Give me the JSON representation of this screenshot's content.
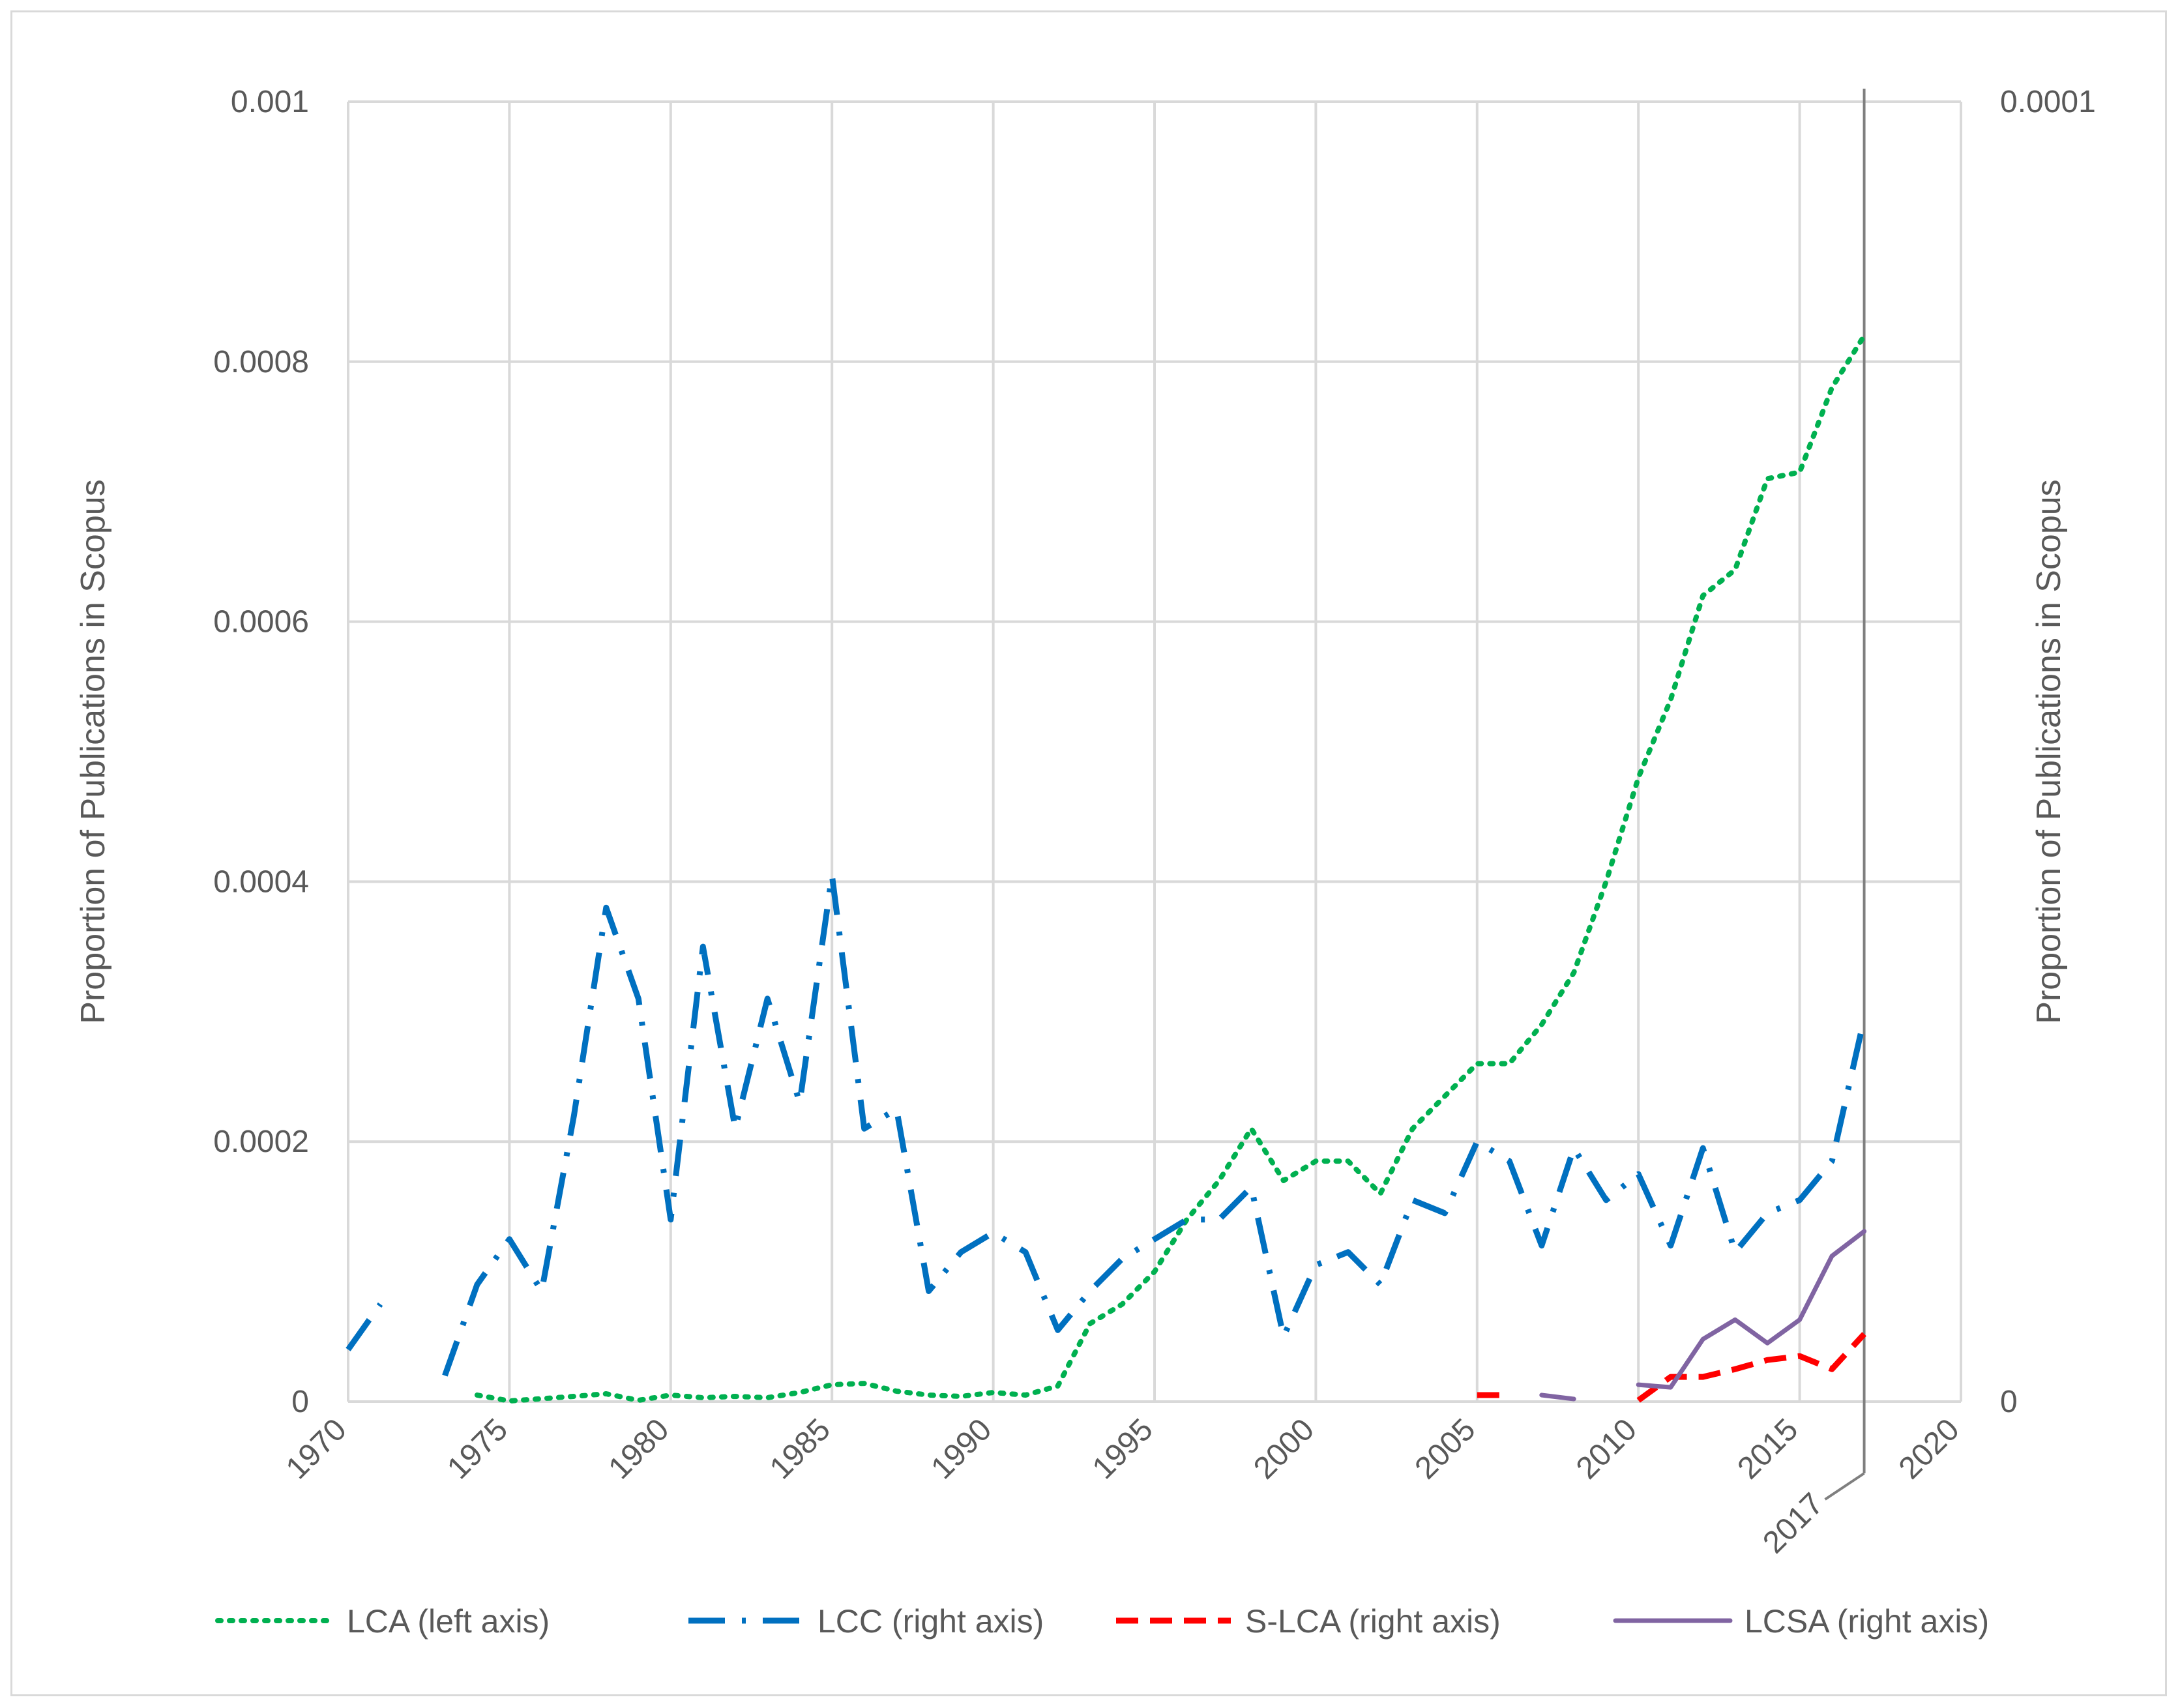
{
  "chart_data": {
    "type": "line",
    "title": "",
    "xlabel": "",
    "ylabel_left": "Proportion of Publications in Scopus",
    "ylabel_right": "Proportion of Publications in Scopus",
    "xlim": [
      1970,
      2020
    ],
    "ylim_left": [
      0,
      0.001
    ],
    "ylim_right": [
      0,
      0.0001
    ],
    "x_ticks": [
      "1970",
      "1975",
      "1980",
      "1985",
      "1990",
      "1995",
      "2000",
      "2005",
      "2010",
      "2015",
      "2020"
    ],
    "left_ticks": [
      "0",
      "0.0002",
      "0.0004",
      "0.0006",
      "0.0008",
      "0.001"
    ],
    "right_ticks": [
      "0",
      "0.0001"
    ],
    "marker_line": {
      "x": 2017,
      "label": "2017"
    },
    "grid": true,
    "legend_position": "bottom",
    "series": [
      {
        "name": "LCA (left axis)",
        "axis": "left",
        "color": "#00b050",
        "dash": "dotted",
        "points": [
          [
            1974,
            5e-06
          ],
          [
            1975,
            5e-07
          ],
          [
            1977,
            4e-06
          ],
          [
            1978,
            6e-06
          ],
          [
            1979,
            1e-06
          ],
          [
            1980,
            5e-06
          ],
          [
            1981,
            3e-06
          ],
          [
            1982,
            4e-06
          ],
          [
            1983,
            3e-06
          ],
          [
            1984,
            7e-06
          ],
          [
            1985,
            1.3e-05
          ],
          [
            1986,
            1.4e-05
          ],
          [
            1987,
            8e-06
          ],
          [
            1988,
            5e-06
          ],
          [
            1989,
            4e-06
          ],
          [
            1990,
            7e-06
          ],
          [
            1991,
            5e-06
          ],
          [
            1992,
            1.2e-05
          ],
          [
            1993,
            6e-05
          ],
          [
            1994,
            7.5e-05
          ],
          [
            1995,
            0.0001
          ],
          [
            1996,
            0.00014
          ],
          [
            1997,
            0.00017
          ],
          [
            1998,
            0.00021
          ],
          [
            1999,
            0.00017
          ],
          [
            2000,
            0.000185
          ],
          [
            2001,
            0.000185
          ],
          [
            2002,
            0.00016
          ],
          [
            2003,
            0.00021
          ],
          [
            2004,
            0.000235
          ],
          [
            2005,
            0.00026
          ],
          [
            2006,
            0.00026
          ],
          [
            2007,
            0.00029
          ],
          [
            2008,
            0.00033
          ],
          [
            2009,
            0.0004
          ],
          [
            2010,
            0.00048
          ],
          [
            2011,
            0.00054
          ],
          [
            2012,
            0.00062
          ],
          [
            2013,
            0.00064
          ],
          [
            2014,
            0.00071
          ],
          [
            2015,
            0.000715
          ],
          [
            2016,
            0.00078
          ],
          [
            2017,
            0.00082
          ]
        ]
      },
      {
        "name": "LCC (right axis)",
        "axis": "right",
        "color": "#0070c0",
        "dash": "dashdot",
        "segments": [
          [
            [
              1970,
              4e-06
            ],
            [
              1971,
              7.5e-06
            ]
          ],
          [
            [
              1973,
              2e-06
            ],
            [
              1974,
              9e-06
            ],
            [
              1975,
              1.25e-05
            ],
            [
              1976,
              8.5e-06
            ],
            [
              1977,
              2.2e-05
            ],
            [
              1978,
              3.8e-05
            ],
            [
              1979,
              3.1e-05
            ],
            [
              1980,
              1.4e-05
            ],
            [
              1981,
              3.5e-05
            ],
            [
              1982,
              2.1e-05
            ],
            [
              1983,
              3.1e-05
            ],
            [
              1984,
              2.3e-05
            ],
            [
              1985,
              4.05e-05
            ],
            [
              1986,
              2.1e-05
            ],
            [
              1987,
              2.25e-05
            ],
            [
              1988,
              8.5e-06
            ],
            [
              1989,
              1.15e-05
            ],
            [
              1990,
              1.3e-05
            ],
            [
              1991,
              1.15e-05
            ],
            [
              1992,
              5.5e-06
            ],
            [
              1993,
              8.5e-06
            ],
            [
              1994,
              1.1e-05
            ],
            [
              1995,
              1.25e-05
            ],
            [
              1996,
              1.4e-05
            ],
            [
              1997,
              1.4e-05
            ],
            [
              1998,
              1.65e-05
            ],
            [
              1999,
              5e-06
            ],
            [
              2000,
              1.05e-05
            ],
            [
              2001,
              1.15e-05
            ],
            [
              2002,
              9e-06
            ],
            [
              2003,
              1.55e-05
            ],
            [
              2004,
              1.45e-05
            ],
            [
              2005,
              2e-05
            ],
            [
              2006,
              1.85e-05
            ],
            [
              2007,
              1.2e-05
            ],
            [
              2008,
              1.95e-05
            ],
            [
              2009,
              1.55e-05
            ],
            [
              2010,
              1.75e-05
            ],
            [
              2011,
              1.2e-05
            ],
            [
              2012,
              1.95e-05
            ],
            [
              2013,
              1.15e-05
            ],
            [
              2014,
              1.45e-05
            ],
            [
              2015,
              1.55e-05
            ],
            [
              2016,
              1.85e-05
            ],
            [
              2017,
              2.95e-05
            ]
          ]
        ]
      },
      {
        "name": "S-LCA (right axis)",
        "axis": "right",
        "color": "#ff0000",
        "dash": "dashed",
        "segments": [
          [
            [
              2005,
              5e-07
            ],
            [
              2006,
              5e-07
            ]
          ],
          [
            [
              2010,
              1e-07
            ],
            [
              2011,
              1.9e-06
            ],
            [
              2012,
              1.9e-06
            ],
            [
              2013,
              2.5e-06
            ],
            [
              2014,
              3.2e-06
            ],
            [
              2015,
              3.5e-06
            ],
            [
              2016,
              2.5e-06
            ],
            [
              2017,
              5.2e-06
            ]
          ]
        ]
      },
      {
        "name": "LCSA (right axis)",
        "axis": "right",
        "color": "#8064a2",
        "dash": "solid",
        "segments": [
          [
            [
              2007,
              5e-07
            ],
            [
              2008,
              2e-07
            ]
          ],
          [
            [
              2010,
              1.3e-06
            ],
            [
              2011,
              1.1e-06
            ],
            [
              2012,
              4.8e-06
            ],
            [
              2013,
              6.3e-06
            ],
            [
              2014,
              4.5e-06
            ],
            [
              2015,
              6.3e-06
            ],
            [
              2016,
              1.12e-05
            ],
            [
              2017,
              1.31e-05
            ]
          ]
        ]
      }
    ]
  }
}
